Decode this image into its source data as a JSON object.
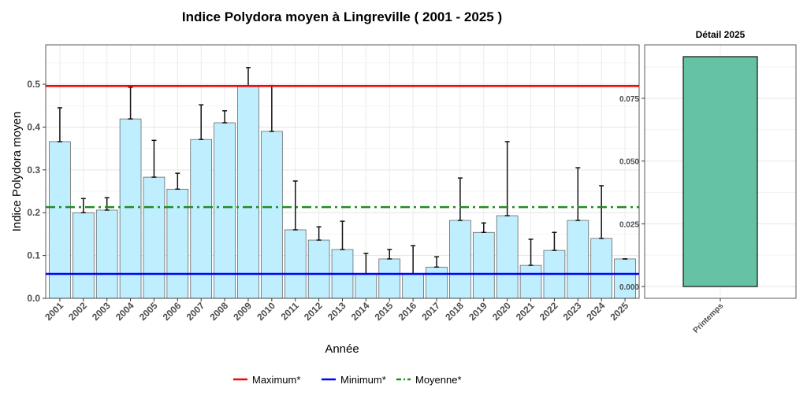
{
  "chart_data": [
    {
      "type": "bar",
      "title": "Indice Polydora moyen à Lingreville ( 2001 - 2025 )",
      "xlabel": "Année",
      "ylabel": "Indice Polydora moyen",
      "ylim": [
        0,
        0.592
      ],
      "yticks": [
        0.0,
        0.1,
        0.2,
        0.3,
        0.4,
        0.5
      ],
      "ytick_labels": [
        "0.0",
        "0.1",
        "0.2",
        "0.3",
        "0.4",
        "0.5"
      ],
      "grid": true,
      "categories": [
        "2001",
        "2002",
        "2003",
        "2004",
        "2005",
        "2006",
        "2007",
        "2008",
        "2009",
        "2010",
        "2011",
        "2012",
        "2013",
        "2014",
        "2015",
        "2016",
        "2017",
        "2018",
        "2019",
        "2020",
        "2021",
        "2022",
        "2023",
        "2024",
        "2025"
      ],
      "values": [
        0.366,
        0.2,
        0.206,
        0.419,
        0.283,
        0.255,
        0.371,
        0.41,
        0.496,
        0.39,
        0.16,
        0.136,
        0.114,
        0.057,
        0.092,
        0.057,
        0.073,
        0.182,
        0.154,
        0.193,
        0.077,
        0.112,
        0.182,
        0.14,
        0.092
      ],
      "error_upper": [
        0.445,
        0.233,
        0.235,
        0.493,
        0.369,
        0.292,
        0.452,
        0.438,
        0.539,
        0.497,
        0.274,
        0.167,
        0.18,
        0.105,
        0.114,
        0.123,
        0.097,
        0.281,
        0.176,
        0.366,
        0.138,
        0.154,
        0.305,
        0.263,
        0.092
      ],
      "bar_color": "#bfefff",
      "reference_lines": [
        {
          "name": "Maximum*",
          "value": 0.496,
          "color": "#ff0000",
          "style": "solid"
        },
        {
          "name": "Minimum*",
          "value": 0.057,
          "color": "#0000ff",
          "style": "solid"
        },
        {
          "name": "Moyenne*",
          "value": 0.213,
          "color": "#228b22",
          "style": "dashdot"
        }
      ],
      "legend_position": "bottom"
    },
    {
      "type": "bar",
      "title": "Détail 2025",
      "categories": [
        "Printemps"
      ],
      "values": [
        0.0916
      ],
      "ylim": [
        -0.0047,
        0.0963
      ],
      "yticks": [
        0.0,
        0.025,
        0.05,
        0.075
      ],
      "ytick_labels": [
        "0.000",
        "0.025",
        "0.050",
        "0.075"
      ],
      "bar_color": "#66c2a5",
      "grid": true
    }
  ]
}
